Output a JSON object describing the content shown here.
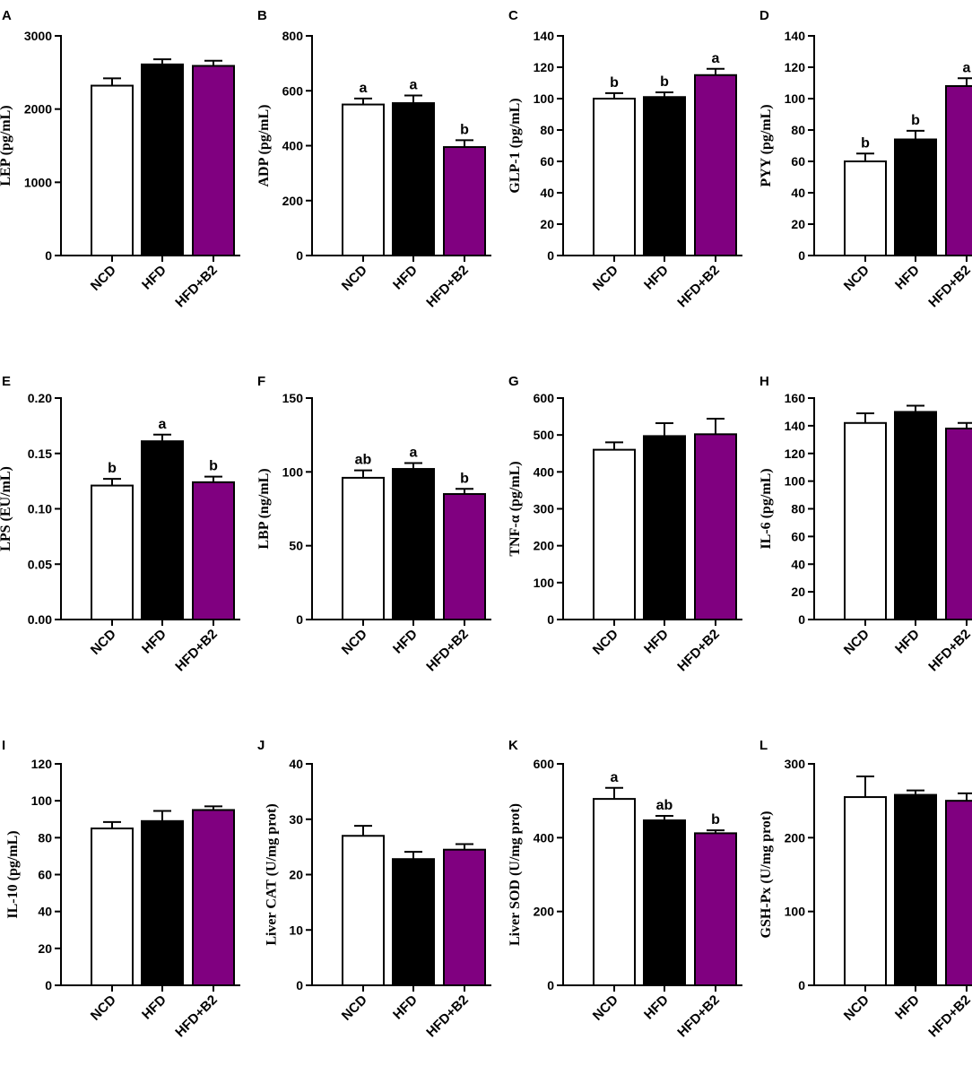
{
  "chart_data": [
    {
      "panel": "A",
      "type": "bar",
      "ylabel": "LEP (pg/mL)",
      "ylim": [
        0,
        3000
      ],
      "yticks": [
        0,
        1000,
        2000,
        3000
      ],
      "categories": [
        "NCD",
        "HFD",
        "HFD+B2"
      ],
      "values": [
        2320,
        2610,
        2590
      ],
      "errors": [
        100,
        70,
        70
      ],
      "labels": [
        "",
        "",
        ""
      ]
    },
    {
      "panel": "B",
      "type": "bar",
      "ylabel": "ADP (pg/mL)",
      "ylim": [
        0,
        800
      ],
      "yticks": [
        0,
        200,
        400,
        600,
        800
      ],
      "categories": [
        "NCD",
        "HFD",
        "HFD+B2"
      ],
      "values": [
        550,
        555,
        395
      ],
      "errors": [
        22,
        28,
        25
      ],
      "labels": [
        "a",
        "a",
        "b"
      ]
    },
    {
      "panel": "C",
      "type": "bar",
      "ylabel": "GLP-1 (pg/mL)",
      "ylim": [
        0,
        140
      ],
      "yticks": [
        0,
        20,
        40,
        60,
        80,
        100,
        120,
        140
      ],
      "categories": [
        "NCD",
        "HFD",
        "HFD+B2"
      ],
      "values": [
        100,
        101,
        115
      ],
      "errors": [
        3.5,
        3,
        4
      ],
      "labels": [
        "b",
        "b",
        "a"
      ]
    },
    {
      "panel": "D",
      "type": "bar",
      "ylabel": "PYY (pg/mL)",
      "ylim": [
        0,
        140
      ],
      "yticks": [
        0,
        20,
        40,
        60,
        80,
        100,
        120,
        140
      ],
      "categories": [
        "NCD",
        "HFD",
        "HFD+B2"
      ],
      "values": [
        60,
        74,
        108
      ],
      "errors": [
        5,
        5.5,
        5
      ],
      "labels": [
        "b",
        "b",
        "a"
      ]
    },
    {
      "panel": "E",
      "type": "bar",
      "ylabel": "LPS (EU/mL)",
      "ylim": [
        0,
        0.2
      ],
      "yticks": [
        0,
        0.05,
        0.1,
        0.15,
        0.2
      ],
      "tick_labels": [
        "0.00",
        "0.05",
        "0.10",
        "0.15",
        "0.20"
      ],
      "categories": [
        "NCD",
        "HFD",
        "HFD+B2"
      ],
      "values": [
        0.121,
        0.161,
        0.124
      ],
      "errors": [
        0.006,
        0.006,
        0.005
      ],
      "labels": [
        "b",
        "a",
        "b"
      ]
    },
    {
      "panel": "F",
      "type": "bar",
      "ylabel": "LBP (ng/mL)",
      "ylim": [
        0,
        150
      ],
      "yticks": [
        0,
        50,
        100,
        150
      ],
      "categories": [
        "NCD",
        "HFD",
        "HFD+B2"
      ],
      "values": [
        96,
        102,
        85
      ],
      "errors": [
        5,
        4,
        3.5
      ],
      "labels": [
        "ab",
        "a",
        "b"
      ]
    },
    {
      "panel": "G",
      "type": "bar",
      "ylabel": "TNF-α (pg/mL)",
      "ylim": [
        0,
        600
      ],
      "yticks": [
        0,
        100,
        200,
        300,
        400,
        500,
        600
      ],
      "categories": [
        "NCD",
        "HFD",
        "HFD+B2"
      ],
      "values": [
        460,
        497,
        502
      ],
      "errors": [
        20,
        35,
        42
      ],
      "labels": [
        "",
        "",
        ""
      ]
    },
    {
      "panel": "H",
      "type": "bar",
      "ylabel": "IL-6 (pg/mL)",
      "ylim": [
        0,
        160
      ],
      "yticks": [
        0,
        20,
        40,
        60,
        80,
        100,
        120,
        140,
        160
      ],
      "categories": [
        "NCD",
        "HFD",
        "HFD+B2"
      ],
      "values": [
        142,
        150,
        138
      ],
      "errors": [
        7,
        4.5,
        4
      ],
      "labels": [
        "",
        "",
        ""
      ]
    },
    {
      "panel": "I",
      "type": "bar",
      "ylabel": "IL-10 (pg/mL)",
      "ylim": [
        0,
        120
      ],
      "yticks": [
        0,
        20,
        40,
        60,
        80,
        100,
        120
      ],
      "categories": [
        "NCD",
        "HFD",
        "HFD+B2"
      ],
      "values": [
        85,
        89,
        95
      ],
      "errors": [
        3.5,
        5.5,
        2
      ],
      "labels": [
        "",
        "",
        ""
      ]
    },
    {
      "panel": "J",
      "type": "bar",
      "ylabel": "Liver CAT (U/mg prot)",
      "ylim": [
        0,
        40
      ],
      "yticks": [
        0,
        10,
        20,
        30,
        40
      ],
      "categories": [
        "NCD",
        "HFD",
        "HFD+B2"
      ],
      "values": [
        27,
        22.8,
        24.5
      ],
      "errors": [
        1.8,
        1.3,
        1
      ],
      "labels": [
        "",
        "",
        ""
      ]
    },
    {
      "panel": "K",
      "type": "bar",
      "ylabel": "Liver SOD (U/mg prot)",
      "ylim": [
        0,
        600
      ],
      "yticks": [
        0,
        200,
        400,
        600
      ],
      "categories": [
        "NCD",
        "HFD",
        "HFD+B2"
      ],
      "values": [
        505,
        447,
        412
      ],
      "errors": [
        30,
        12,
        8
      ],
      "labels": [
        "a",
        "ab",
        "b"
      ]
    },
    {
      "panel": "L",
      "type": "bar",
      "ylabel": "GSH-Px (U/mg prot)",
      "ylim": [
        0,
        300
      ],
      "yticks": [
        0,
        100,
        200,
        300
      ],
      "categories": [
        "NCD",
        "HFD",
        "HFD+B2"
      ],
      "values": [
        255,
        258,
        250
      ],
      "errors": [
        28,
        6,
        10
      ],
      "labels": [
        "",
        "",
        ""
      ]
    }
  ],
  "colors": {
    "NCD": "#ffffff",
    "HFD": "#000000",
    "HFD+B2": "#800080"
  }
}
